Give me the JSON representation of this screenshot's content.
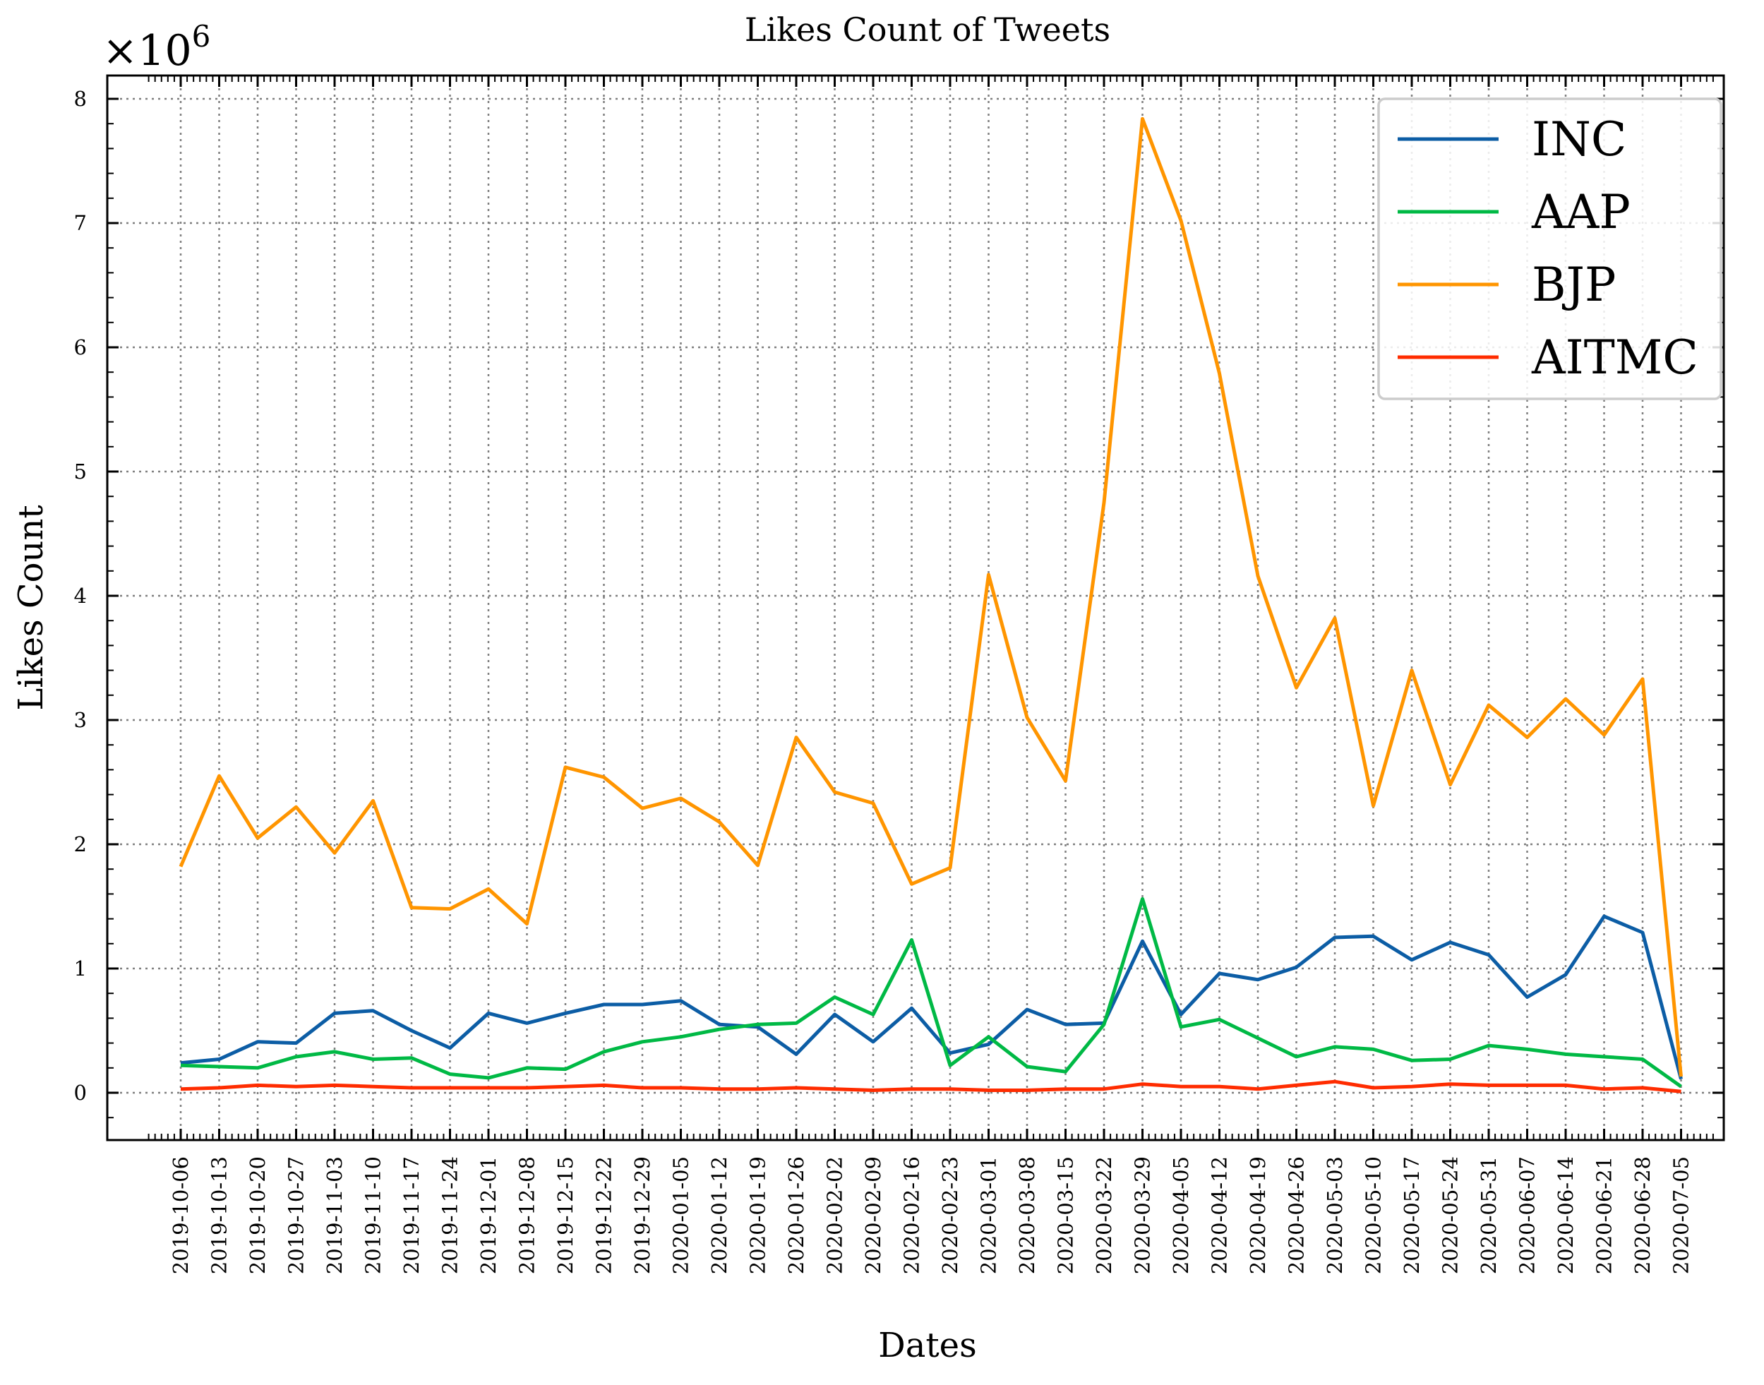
{
  "chart_data": {
    "type": "line",
    "title": "Likes Count of Tweets",
    "xlabel": "Dates",
    "ylabel": "Likes Count",
    "y_multiplier_label": "×10",
    "y_multiplier_exponent": "6",
    "ylim": [
      -0.4,
      8.2
    ],
    "yticks": [
      0,
      1,
      2,
      3,
      4,
      5,
      6,
      7,
      8
    ],
    "grid": true,
    "legend_position": "top-right",
    "x": [
      "2019-10-06",
      "2019-10-13",
      "2019-10-20",
      "2019-10-27",
      "2019-11-03",
      "2019-11-10",
      "2019-11-17",
      "2019-11-24",
      "2019-12-01",
      "2019-12-08",
      "2019-12-15",
      "2019-12-22",
      "2019-12-29",
      "2020-01-05",
      "2020-01-12",
      "2020-01-19",
      "2020-01-26",
      "2020-02-02",
      "2020-02-09",
      "2020-02-16",
      "2020-02-23",
      "2020-03-01",
      "2020-03-08",
      "2020-03-15",
      "2020-03-22",
      "2020-03-29",
      "2020-04-05",
      "2020-04-12",
      "2020-04-19",
      "2020-04-26",
      "2020-05-03",
      "2020-05-10",
      "2020-05-17",
      "2020-05-24",
      "2020-05-31",
      "2020-06-07",
      "2020-06-14",
      "2020-06-21",
      "2020-06-28",
      "2020-07-05"
    ],
    "series": [
      {
        "name": "INC",
        "color": "#0C5DA5",
        "values": [
          0.24,
          0.27,
          0.41,
          0.4,
          0.64,
          0.66,
          0.5,
          0.36,
          0.64,
          0.56,
          0.64,
          0.71,
          0.71,
          0.74,
          0.55,
          0.53,
          0.31,
          0.63,
          0.41,
          0.68,
          0.32,
          0.39,
          0.67,
          0.55,
          0.56,
          1.22,
          0.63,
          0.96,
          0.91,
          1.01,
          1.25,
          1.26,
          1.07,
          1.21,
          1.11,
          0.77,
          0.95,
          1.42,
          1.29,
          0.11
        ]
      },
      {
        "name": "AAP",
        "color": "#00B945",
        "values": [
          0.22,
          0.21,
          0.2,
          0.29,
          0.33,
          0.27,
          0.28,
          0.15,
          0.12,
          0.2,
          0.19,
          0.33,
          0.41,
          0.45,
          0.51,
          0.55,
          0.56,
          0.77,
          0.63,
          1.23,
          0.22,
          0.45,
          0.21,
          0.17,
          0.55,
          1.56,
          0.53,
          0.59,
          0.44,
          0.29,
          0.37,
          0.35,
          0.26,
          0.27,
          0.38,
          0.35,
          0.31,
          0.29,
          0.27,
          0.05
        ]
      },
      {
        "name": "BJP",
        "color": "#FF9500",
        "values": [
          1.82,
          2.55,
          2.05,
          2.3,
          1.93,
          2.35,
          1.49,
          1.48,
          1.64,
          1.36,
          2.62,
          2.54,
          2.29,
          2.37,
          2.18,
          1.83,
          2.86,
          2.42,
          2.33,
          1.68,
          1.81,
          4.17,
          3.02,
          2.51,
          4.75,
          7.84,
          7.02,
          5.79,
          4.16,
          3.26,
          3.82,
          2.31,
          3.4,
          2.48,
          3.12,
          2.86,
          3.17,
          2.88,
          3.33,
          0.13
        ]
      },
      {
        "name": "AITMC",
        "color": "#FF2C00",
        "values": [
          0.03,
          0.04,
          0.06,
          0.05,
          0.06,
          0.05,
          0.04,
          0.04,
          0.04,
          0.04,
          0.05,
          0.06,
          0.04,
          0.04,
          0.03,
          0.03,
          0.04,
          0.03,
          0.02,
          0.03,
          0.03,
          0.02,
          0.02,
          0.03,
          0.03,
          0.07,
          0.05,
          0.05,
          0.03,
          0.06,
          0.09,
          0.04,
          0.05,
          0.07,
          0.06,
          0.06,
          0.06,
          0.03,
          0.04,
          0.01
        ]
      }
    ]
  }
}
